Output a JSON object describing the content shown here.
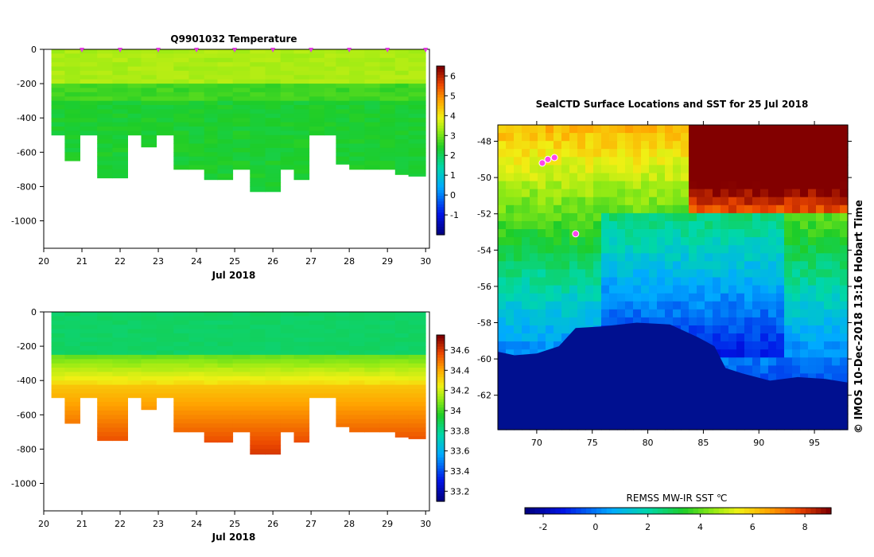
{
  "chart_data": [
    {
      "type": "heatmap",
      "title": "Q9901032  Temperature",
      "xlabel": "Jul 2018",
      "ylabel": "",
      "x_ticks": [
        "20",
        "21",
        "22",
        "23",
        "24",
        "25",
        "26",
        "27",
        "28",
        "29",
        "30"
      ],
      "y_ticks": [
        "0",
        "-200",
        "-400",
        "-600",
        "-800",
        "-1000"
      ],
      "xlim": [
        20,
        30.1
      ],
      "ylim": [
        -1160,
        0
      ],
      "variable": "temperature",
      "colorbar": {
        "min": -2,
        "max": 6.5,
        "ticks": [
          "-1",
          "0",
          "1",
          "2",
          "3",
          "4",
          "5",
          "6"
        ]
      },
      "profile_days": [
        20.4,
        20.7,
        21.2,
        21.6,
        22.0,
        22.4,
        22.7,
        23.2,
        23.6,
        24.0,
        24.4,
        24.7,
        25.2,
        25.6,
        26.0,
        26.4,
        26.7,
        27.2,
        27.5,
        27.8,
        28.2,
        28.6,
        29.0,
        29.4,
        29.7
      ],
      "profile_max_depth": [
        -500,
        -650,
        -500,
        -750,
        -750,
        -500,
        -570,
        -500,
        -700,
        -700,
        -760,
        -760,
        -700,
        -830,
        -830,
        -700,
        -760,
        -500,
        -500,
        -670,
        -700,
        -700,
        -700,
        -730,
        -740
      ],
      "surface_markers": [
        21,
        22,
        23,
        24,
        25,
        26,
        27,
        28,
        29,
        30
      ]
    },
    {
      "type": "heatmap",
      "title": "",
      "xlabel": "Jul 2018",
      "ylabel": "",
      "x_ticks": [
        "20",
        "21",
        "22",
        "23",
        "24",
        "25",
        "26",
        "27",
        "28",
        "29",
        "30"
      ],
      "y_ticks": [
        "0",
        "-200",
        "-400",
        "-600",
        "-800",
        "-1000"
      ],
      "xlim": [
        20,
        30.1
      ],
      "ylim": [
        -1160,
        0
      ],
      "variable": "salinity",
      "colorbar": {
        "min": 33.1,
        "max": 34.75,
        "ticks": [
          "33.2",
          "33.4",
          "33.6",
          "33.8",
          "34",
          "34.2",
          "34.4",
          "34.6"
        ]
      },
      "profile_days": [
        20.4,
        20.7,
        21.2,
        21.6,
        22.0,
        22.4,
        22.7,
        23.2,
        23.6,
        24.0,
        24.4,
        24.7,
        25.2,
        25.6,
        26.0,
        26.4,
        26.7,
        27.2,
        27.5,
        27.8,
        28.2,
        28.6,
        29.0,
        29.4,
        29.7
      ],
      "profile_max_depth": [
        -500,
        -650,
        -500,
        -750,
        -750,
        -500,
        -570,
        -500,
        -700,
        -700,
        -760,
        -760,
        -700,
        -830,
        -830,
        -700,
        -760,
        -500,
        -500,
        -670,
        -700,
        -700,
        -700,
        -730,
        -740
      ]
    },
    {
      "type": "heatmap",
      "title": "SealCTD Surface Locations and SST for 25 Jul 2018",
      "xlabel": "",
      "ylabel": "",
      "x_ticks": [
        "70",
        "75",
        "80",
        "85",
        "90",
        "95"
      ],
      "y_ticks": [
        "-48",
        "-50",
        "-52",
        "-54",
        "-56",
        "-58",
        "-60",
        "-62"
      ],
      "xlim": [
        66.5,
        98
      ],
      "ylim": [
        -63.9,
        -47.1
      ],
      "colorbar": {
        "label": "REMSS MW-IR SST ℃",
        "min": -2.7,
        "max": 9.0,
        "ticks": [
          "-2",
          "0",
          "2",
          "4",
          "6",
          "8"
        ]
      },
      "seal_locations": [
        [
          70.5,
          -49.2
        ],
        [
          71.0,
          -49.0
        ],
        [
          71.6,
          -48.9
        ],
        [
          73.5,
          -53.1
        ]
      ]
    }
  ],
  "credit": "© IMOS 10-Dec-2018 13:16 Hobart Time"
}
